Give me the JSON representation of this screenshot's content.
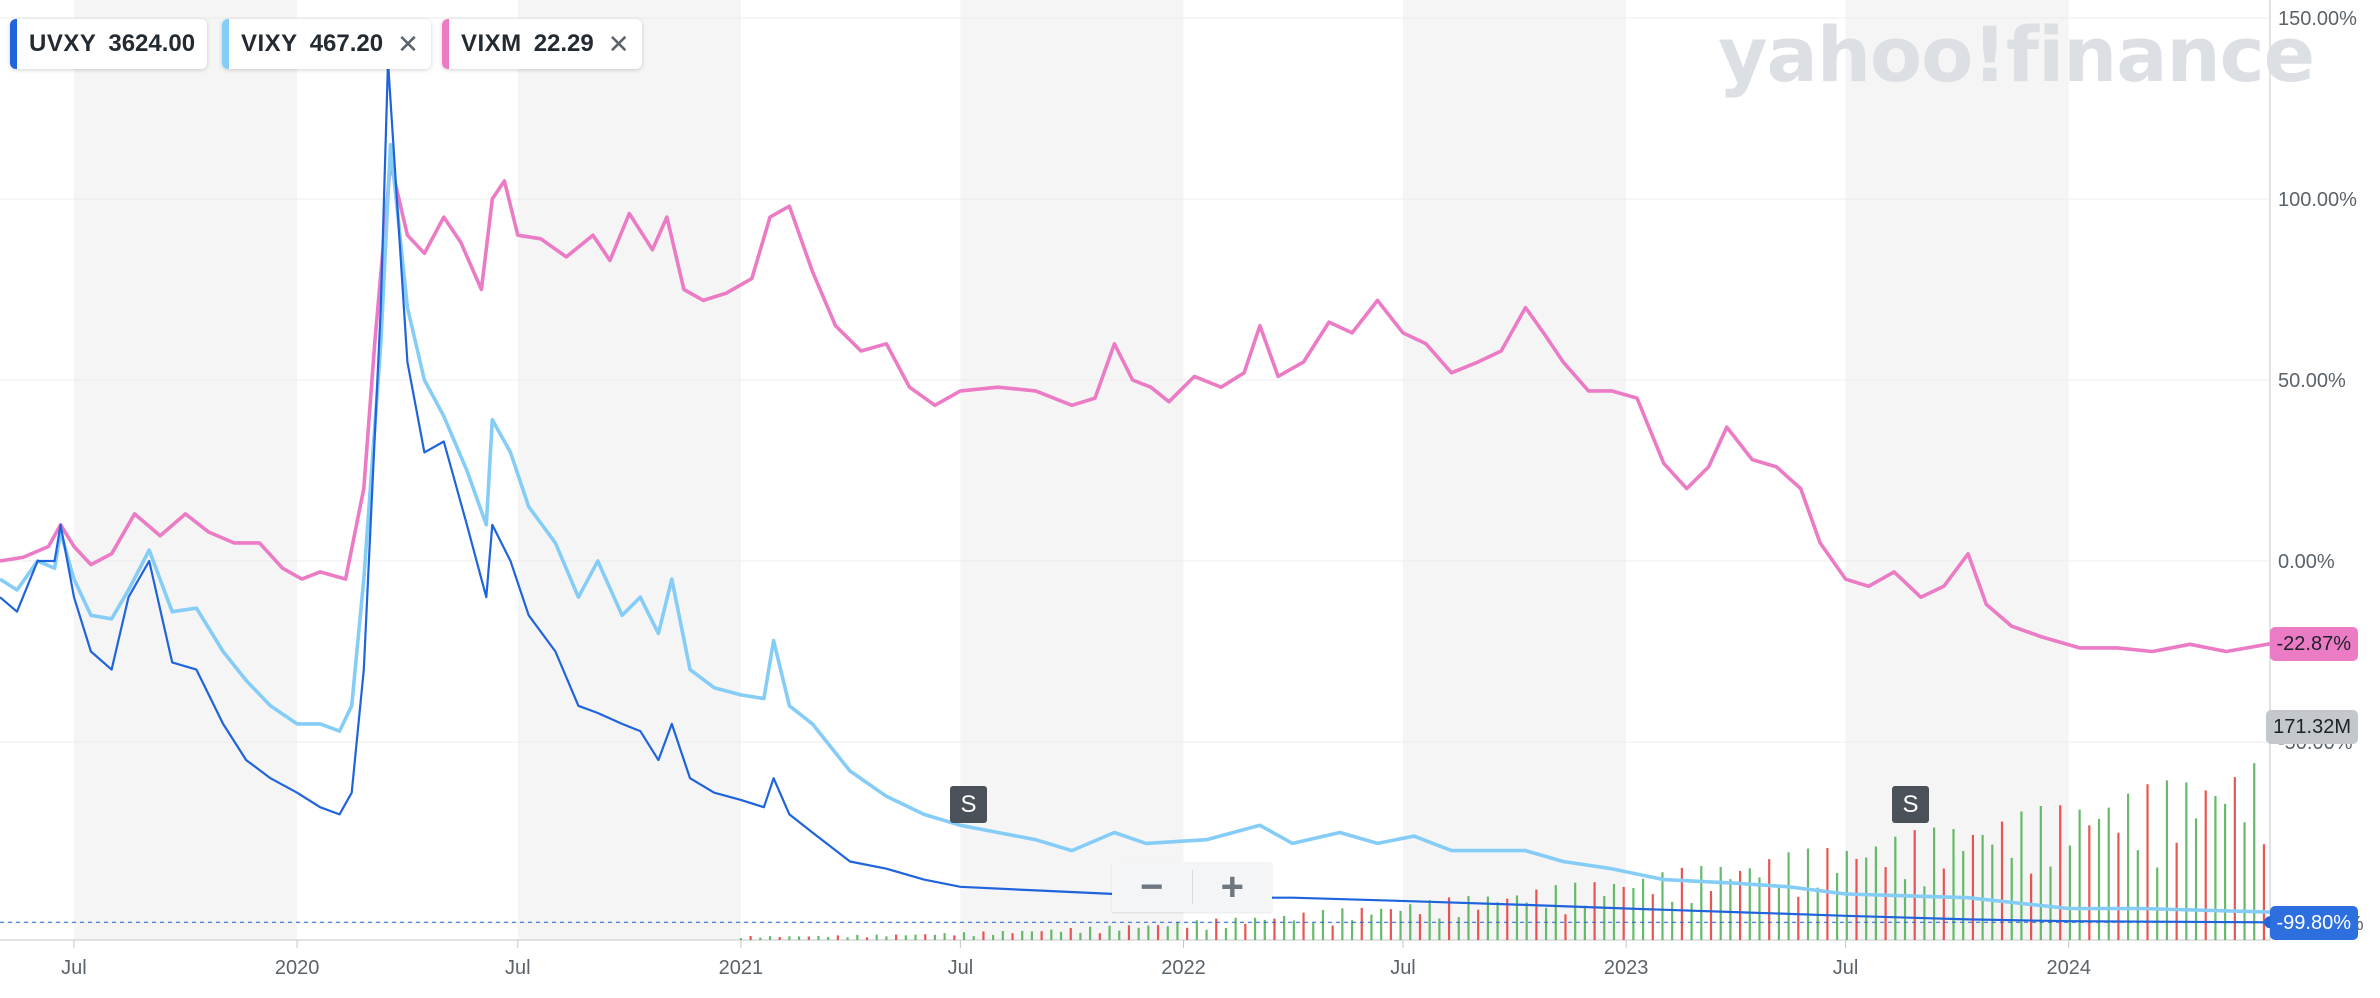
{
  "watermark": "yahoo!finance",
  "legend": [
    {
      "symbol": "UVXY",
      "value": "3624.00",
      "color": "#1f64dc",
      "removable": false
    },
    {
      "symbol": "VIXY",
      "value": "467.20",
      "color": "#85cdf6",
      "removable": true
    },
    {
      "symbol": "VIXM",
      "value": "22.29",
      "color": "#ec7bc5",
      "removable": true
    }
  ],
  "zoom": {
    "out_label": "−",
    "in_label": "+"
  },
  "split_marker": "S",
  "badges": {
    "vixm_pct": "-22.87%",
    "volume": "171.32M",
    "uvxy_pct": "-99.80%"
  },
  "chart_data": {
    "type": "line",
    "x_start": "2019-05-01",
    "x_end": "2024-06-15",
    "x_ticks": [
      {
        "label": "Jul",
        "date": "2019-07-01"
      },
      {
        "label": "2020",
        "date": "2020-01-01"
      },
      {
        "label": "Jul",
        "date": "2020-07-01"
      },
      {
        "label": "2021",
        "date": "2021-01-01"
      },
      {
        "label": "Jul",
        "date": "2021-07-01"
      },
      {
        "label": "2022",
        "date": "2022-01-01"
      },
      {
        "label": "Jul",
        "date": "2022-07-01"
      },
      {
        "label": "2023",
        "date": "2023-01-01"
      },
      {
        "label": "Jul",
        "date": "2023-07-01"
      },
      {
        "label": "2024",
        "date": "2024-01-01"
      }
    ],
    "y_unit": "%",
    "ylim": [
      -100,
      150
    ],
    "y_ticks": [
      "150.00%",
      "100.00%",
      "50.00%",
      "0.00%",
      "-50.00%",
      "-100.00%"
    ],
    "y_tick_values": [
      150,
      100,
      50,
      0,
      -50,
      -100
    ],
    "grid": true,
    "shaded_bands": [
      [
        "2019-07-01",
        "2020-01-01"
      ],
      [
        "2020-07-01",
        "2021-01-01"
      ],
      [
        "2021-07-01",
        "2022-01-01"
      ],
      [
        "2022-07-01",
        "2023-01-01"
      ],
      [
        "2023-07-01",
        "2024-01-01"
      ]
    ],
    "splits": [
      "2021-05-26",
      "2023-06-23"
    ],
    "series": [
      {
        "name": "VIXM",
        "color": "#ec7bc5",
        "points": [
          [
            "2019-05-01",
            0
          ],
          [
            "2019-05-20",
            1
          ],
          [
            "2019-06-10",
            4
          ],
          [
            "2019-06-20",
            10
          ],
          [
            "2019-07-01",
            4
          ],
          [
            "2019-07-15",
            -1
          ],
          [
            "2019-08-01",
            2
          ],
          [
            "2019-08-20",
            13
          ],
          [
            "2019-09-10",
            7
          ],
          [
            "2019-10-01",
            13
          ],
          [
            "2019-10-20",
            8
          ],
          [
            "2019-11-10",
            5
          ],
          [
            "2019-12-01",
            5
          ],
          [
            "2019-12-20",
            -2
          ],
          [
            "2020-01-05",
            -5
          ],
          [
            "2020-01-20",
            -3
          ],
          [
            "2020-02-10",
            -5
          ],
          [
            "2020-02-25",
            20
          ],
          [
            "2020-03-05",
            60
          ],
          [
            "2020-03-18",
            110
          ],
          [
            "2020-04-01",
            90
          ],
          [
            "2020-04-15",
            85
          ],
          [
            "2020-05-01",
            95
          ],
          [
            "2020-05-15",
            88
          ],
          [
            "2020-06-01",
            75
          ],
          [
            "2020-06-10",
            100
          ],
          [
            "2020-06-20",
            105
          ],
          [
            "2020-07-01",
            90
          ],
          [
            "2020-07-20",
            89
          ],
          [
            "2020-08-10",
            84
          ],
          [
            "2020-09-01",
            90
          ],
          [
            "2020-09-15",
            83
          ],
          [
            "2020-10-01",
            96
          ],
          [
            "2020-10-20",
            86
          ],
          [
            "2020-11-01",
            95
          ],
          [
            "2020-11-15",
            75
          ],
          [
            "2020-12-01",
            72
          ],
          [
            "2020-12-20",
            74
          ],
          [
            "2021-01-10",
            78
          ],
          [
            "2021-01-25",
            95
          ],
          [
            "2021-02-10",
            98
          ],
          [
            "2021-03-01",
            80
          ],
          [
            "2021-03-20",
            65
          ],
          [
            "2021-04-10",
            58
          ],
          [
            "2021-05-01",
            60
          ],
          [
            "2021-05-20",
            48
          ],
          [
            "2021-06-10",
            43
          ],
          [
            "2021-07-01",
            47
          ],
          [
            "2021-08-01",
            48
          ],
          [
            "2021-09-01",
            47
          ],
          [
            "2021-10-01",
            43
          ],
          [
            "2021-10-20",
            45
          ],
          [
            "2021-11-05",
            60
          ],
          [
            "2021-11-20",
            50
          ],
          [
            "2021-12-05",
            48
          ],
          [
            "2021-12-20",
            44
          ],
          [
            "2022-01-10",
            51
          ],
          [
            "2022-02-01",
            48
          ],
          [
            "2022-02-20",
            52
          ],
          [
            "2022-03-05",
            65
          ],
          [
            "2022-03-20",
            51
          ],
          [
            "2022-04-10",
            55
          ],
          [
            "2022-05-01",
            66
          ],
          [
            "2022-05-20",
            63
          ],
          [
            "2022-06-10",
            72
          ],
          [
            "2022-07-01",
            63
          ],
          [
            "2022-07-20",
            60
          ],
          [
            "2022-08-10",
            52
          ],
          [
            "2022-09-01",
            55
          ],
          [
            "2022-09-20",
            58
          ],
          [
            "2022-10-10",
            70
          ],
          [
            "2022-10-25",
            63
          ],
          [
            "2022-11-10",
            55
          ],
          [
            "2022-12-01",
            47
          ],
          [
            "2022-12-20",
            47
          ],
          [
            "2023-01-10",
            45
          ],
          [
            "2023-02-01",
            27
          ],
          [
            "2023-02-20",
            20
          ],
          [
            "2023-03-10",
            26
          ],
          [
            "2023-03-25",
            37
          ],
          [
            "2023-04-15",
            28
          ],
          [
            "2023-05-05",
            26
          ],
          [
            "2023-05-25",
            20
          ],
          [
            "2023-06-10",
            5
          ],
          [
            "2023-07-01",
            -5
          ],
          [
            "2023-07-20",
            -7
          ],
          [
            "2023-08-10",
            -3
          ],
          [
            "2023-09-01",
            -10
          ],
          [
            "2023-09-20",
            -7
          ],
          [
            "2023-10-10",
            2
          ],
          [
            "2023-10-25",
            -12
          ],
          [
            "2023-11-15",
            -18
          ],
          [
            "2023-12-10",
            -21
          ],
          [
            "2024-01-10",
            -24
          ],
          [
            "2024-02-10",
            -24
          ],
          [
            "2024-03-10",
            -25
          ],
          [
            "2024-04-10",
            -23
          ],
          [
            "2024-05-10",
            -25
          ],
          [
            "2024-06-15",
            -22.87
          ]
        ]
      },
      {
        "name": "VIXY",
        "color": "#85cdf6",
        "points": [
          [
            "2019-05-01",
            -5
          ],
          [
            "2019-05-15",
            -8
          ],
          [
            "2019-06-01",
            0
          ],
          [
            "2019-06-15",
            -2
          ],
          [
            "2019-06-20",
            8
          ],
          [
            "2019-07-01",
            -5
          ],
          [
            "2019-07-15",
            -15
          ],
          [
            "2019-08-01",
            -16
          ],
          [
            "2019-08-15",
            -8
          ],
          [
            "2019-09-01",
            3
          ],
          [
            "2019-09-20",
            -14
          ],
          [
            "2019-10-10",
            -13
          ],
          [
            "2019-11-01",
            -25
          ],
          [
            "2019-11-20",
            -33
          ],
          [
            "2019-12-10",
            -40
          ],
          [
            "2020-01-01",
            -45
          ],
          [
            "2020-01-20",
            -45
          ],
          [
            "2020-02-05",
            -47
          ],
          [
            "2020-02-15",
            -40
          ],
          [
            "2020-02-25",
            -5
          ],
          [
            "2020-03-10",
            60
          ],
          [
            "2020-03-18",
            115
          ],
          [
            "2020-04-01",
            70
          ],
          [
            "2020-04-15",
            50
          ],
          [
            "2020-05-01",
            40
          ],
          [
            "2020-05-20",
            25
          ],
          [
            "2020-06-05",
            10
          ],
          [
            "2020-06-10",
            39
          ],
          [
            "2020-06-25",
            30
          ],
          [
            "2020-07-10",
            15
          ],
          [
            "2020-08-01",
            5
          ],
          [
            "2020-08-20",
            -10
          ],
          [
            "2020-09-05",
            0
          ],
          [
            "2020-09-25",
            -15
          ],
          [
            "2020-10-10",
            -10
          ],
          [
            "2020-10-25",
            -20
          ],
          [
            "2020-11-05",
            -5
          ],
          [
            "2020-11-20",
            -30
          ],
          [
            "2020-12-10",
            -35
          ],
          [
            "2021-01-01",
            -37
          ],
          [
            "2021-01-20",
            -38
          ],
          [
            "2021-01-28",
            -22
          ],
          [
            "2021-02-10",
            -40
          ],
          [
            "2021-03-01",
            -45
          ],
          [
            "2021-04-01",
            -58
          ],
          [
            "2021-05-01",
            -65
          ],
          [
            "2021-06-01",
            -70
          ],
          [
            "2021-07-01",
            -73
          ],
          [
            "2021-08-01",
            -75
          ],
          [
            "2021-09-01",
            -77
          ],
          [
            "2021-10-01",
            -80
          ],
          [
            "2021-11-05",
            -75
          ],
          [
            "2021-12-01",
            -78
          ],
          [
            "2022-01-20",
            -77
          ],
          [
            "2022-03-05",
            -73
          ],
          [
            "2022-04-01",
            -78
          ],
          [
            "2022-05-10",
            -75
          ],
          [
            "2022-06-10",
            -78
          ],
          [
            "2022-07-10",
            -76
          ],
          [
            "2022-08-10",
            -80
          ],
          [
            "2022-10-10",
            -80
          ],
          [
            "2022-11-10",
            -83
          ],
          [
            "2022-12-20",
            -85
          ],
          [
            "2023-02-01",
            -88
          ],
          [
            "2023-04-01",
            -89
          ],
          [
            "2023-05-15",
            -90
          ],
          [
            "2023-07-01",
            -92
          ],
          [
            "2023-10-10",
            -93
          ],
          [
            "2024-01-01",
            -96
          ],
          [
            "2024-03-01",
            -96
          ],
          [
            "2024-06-15",
            -97
          ]
        ]
      },
      {
        "name": "UVXY",
        "color": "#1f64dc",
        "points": [
          [
            "2019-05-01",
            -10
          ],
          [
            "2019-05-15",
            -14
          ],
          [
            "2019-06-01",
            0
          ],
          [
            "2019-06-15",
            0
          ],
          [
            "2019-06-20",
            10
          ],
          [
            "2019-07-01",
            -10
          ],
          [
            "2019-07-15",
            -25
          ],
          [
            "2019-08-01",
            -30
          ],
          [
            "2019-08-15",
            -10
          ],
          [
            "2019-09-01",
            0
          ],
          [
            "2019-09-20",
            -28
          ],
          [
            "2019-10-10",
            -30
          ],
          [
            "2019-11-01",
            -45
          ],
          [
            "2019-11-20",
            -55
          ],
          [
            "2019-12-10",
            -60
          ],
          [
            "2020-01-01",
            -64
          ],
          [
            "2020-01-20",
            -68
          ],
          [
            "2020-02-05",
            -70
          ],
          [
            "2020-02-15",
            -64
          ],
          [
            "2020-02-25",
            -30
          ],
          [
            "2020-03-10",
            70
          ],
          [
            "2020-03-16",
            138
          ],
          [
            "2020-04-01",
            55
          ],
          [
            "2020-04-15",
            30
          ],
          [
            "2020-05-01",
            33
          ],
          [
            "2020-05-20",
            10
          ],
          [
            "2020-06-05",
            -10
          ],
          [
            "2020-06-10",
            10
          ],
          [
            "2020-06-25",
            0
          ],
          [
            "2020-07-10",
            -15
          ],
          [
            "2020-08-01",
            -25
          ],
          [
            "2020-08-20",
            -40
          ],
          [
            "2020-09-05",
            -42
          ],
          [
            "2020-09-25",
            -45
          ],
          [
            "2020-10-10",
            -47
          ],
          [
            "2020-10-25",
            -55
          ],
          [
            "2020-11-05",
            -45
          ],
          [
            "2020-11-20",
            -60
          ],
          [
            "2020-12-10",
            -64
          ],
          [
            "2021-01-01",
            -66
          ],
          [
            "2021-01-20",
            -68
          ],
          [
            "2021-01-28",
            -60
          ],
          [
            "2021-02-10",
            -70
          ],
          [
            "2021-03-01",
            -75
          ],
          [
            "2021-04-01",
            -83
          ],
          [
            "2021-05-01",
            -85
          ],
          [
            "2021-06-01",
            -88
          ],
          [
            "2021-07-01",
            -90
          ],
          [
            "2021-09-01",
            -91
          ],
          [
            "2021-11-05",
            -92
          ],
          [
            "2022-01-20",
            -93
          ],
          [
            "2022-04-01",
            -93
          ],
          [
            "2022-07-10",
            -94
          ],
          [
            "2022-10-10",
            -95
          ],
          [
            "2023-01-01",
            -96
          ],
          [
            "2023-04-01",
            -97
          ],
          [
            "2023-07-01",
            -98
          ],
          [
            "2023-10-10",
            -99
          ],
          [
            "2024-01-01",
            -99.5
          ],
          [
            "2024-06-15",
            -99.8
          ]
        ]
      }
    ],
    "volume": {
      "color_up": "#4caf50",
      "color_down": "#e53935",
      "max_label": "171.32M"
    }
  }
}
